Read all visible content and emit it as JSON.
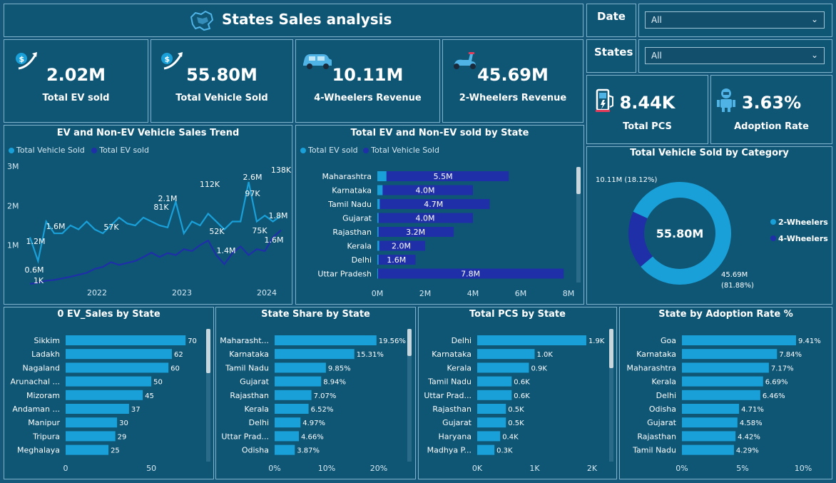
{
  "header": {
    "title": "States Sales analysis"
  },
  "filters": {
    "date": {
      "label": "Date",
      "value": "All"
    },
    "states": {
      "label": "States",
      "value": "All"
    }
  },
  "kpis": [
    {
      "value": "2.02M",
      "label": "Total EV sold",
      "icon": "dollar-growth-icon"
    },
    {
      "value": "55.80M",
      "label": "Total Vehicle Sold",
      "icon": "dollar-growth-icon"
    },
    {
      "value": "10.11M",
      "label": "4-Wheelers Revenue",
      "icon": "car-icon"
    },
    {
      "value": "45.69M",
      "label": "2-Wheelers Revenue",
      "icon": "scooter-icon"
    },
    {
      "value": "8.44K",
      "label": "Total PCS",
      "icon": "charging-station-icon"
    },
    {
      "value": "3.63%",
      "label": "Adoption Rate",
      "icon": "robot-icon"
    }
  ],
  "colors": {
    "light": "#1aa0d8",
    "dark": "#1f2fa8",
    "bar": "#1aa0d8"
  },
  "chart_data": [
    {
      "type": "line",
      "title": "EV and Non-EV Vehicle Sales Trend",
      "series": [
        {
          "name": "Total Vehicle Sold",
          "values": [
            1.2,
            0.6,
            1.6,
            1.3,
            1.3,
            1.5,
            1.4,
            1.6,
            1.4,
            1.3,
            1.5,
            1.7,
            1.55,
            1.5,
            1.7,
            1.6,
            1.5,
            1.45,
            2.1,
            1.3,
            1.6,
            1.5,
            1.8,
            1.6,
            1.4,
            1.6,
            1.6,
            2.6,
            1.6,
            1.75,
            1.6,
            1.75
          ]
        },
        {
          "name": "Total EV sold",
          "values": [
            0.02,
            0.05,
            0.1,
            0.12,
            0.16,
            0.2,
            0.25,
            0.3,
            0.4,
            0.45,
            0.57,
            0.5,
            0.55,
            0.6,
            0.7,
            0.81,
            0.7,
            0.8,
            0.75,
            0.9,
            0.85,
            1.0,
            1.12,
            0.75,
            0.52,
            0.8,
            0.97,
            0.75,
            0.9,
            0.85,
            1.2,
            1.38
          ]
        }
      ],
      "x_ticks": [
        "2022",
        "2023",
        "2024"
      ],
      "y_ticks": [
        "1M",
        "2M",
        "3M"
      ],
      "y_range": [
        0,
        3.0
      ],
      "data_labels": [
        "1.2M",
        "0.6M",
        "1K",
        "1.6M",
        "57K",
        "2.1M",
        "81K",
        "112K",
        "52K",
        "1.4M",
        "2.6M",
        "97K",
        "75K",
        "1.6M",
        "1.8M",
        "138K"
      ]
    },
    {
      "type": "bar",
      "title": "Total EV and Non-EV sold by State",
      "categories": [
        "Maharashtra",
        "Karnataka",
        "Tamil Nadu",
        "Gujarat",
        "Rajasthan",
        "Kerala",
        "Delhi",
        "Uttar Pradesh"
      ],
      "series": [
        {
          "name": "Total EV sold",
          "values": [
            0.38,
            0.22,
            0.1,
            0.05,
            0.05,
            0.08,
            0.05,
            0.03
          ]
        },
        {
          "name": "Total Vehicle Sold",
          "values": [
            5.5,
            4.0,
            4.7,
            4.0,
            3.2,
            2.0,
            1.6,
            7.8
          ]
        }
      ],
      "value_labels": [
        "5.5M",
        "4.0M",
        "4.7M",
        "4.0M",
        "3.2M",
        "2.0M",
        "1.6M",
        "7.8M"
      ],
      "x_ticks": [
        "0M",
        "2M",
        "4M",
        "6M",
        "8M"
      ],
      "xlim": [
        0,
        8
      ]
    },
    {
      "type": "pie",
      "title": "Total Vehicle Sold by Category",
      "center_label": "55.80M",
      "slices": [
        {
          "name": "2-Wheelers",
          "value": 45.69,
          "label": "45.69M",
          "pct": "(81.88%)"
        },
        {
          "name": "4-Wheelers",
          "value": 10.11,
          "label": "10.11M (18.12%)"
        }
      ]
    },
    {
      "type": "bar",
      "title": "0 EV_Sales by State",
      "categories": [
        "Sikkim",
        "Ladakh",
        "Nagaland",
        "Arunachal ...",
        "Mizoram",
        "Andaman ...",
        "Manipur",
        "Tripura",
        "Meghalaya"
      ],
      "values": [
        70,
        62,
        60,
        50,
        45,
        37,
        30,
        29,
        25
      ],
      "value_labels": [
        "70",
        "62",
        "60",
        "50",
        "45",
        "37",
        "30",
        "29",
        "25"
      ],
      "x_ticks": [
        "0",
        "50"
      ],
      "xlim": [
        0,
        72
      ]
    },
    {
      "type": "bar",
      "title": "State Share by State",
      "categories": [
        "Maharasht...",
        "Karnataka",
        "Tamil Nadu",
        "Gujarat",
        "Rajasthan",
        "Kerala",
        "Delhi",
        "Uttar Prad...",
        "Odisha"
      ],
      "values": [
        19.56,
        15.31,
        9.85,
        8.94,
        7.07,
        6.52,
        4.97,
        4.66,
        3.87
      ],
      "value_labels": [
        "19.56%",
        "15.31%",
        "9.85%",
        "8.94%",
        "7.07%",
        "6.52%",
        "4.97%",
        "4.66%",
        "3.87%"
      ],
      "x_ticks": [
        "0%",
        "10%",
        "20%"
      ],
      "xlim": [
        0,
        20
      ]
    },
    {
      "type": "bar",
      "title": "Total PCS by State",
      "categories": [
        "Delhi",
        "Karnataka",
        "Kerala",
        "Tamil Nadu",
        "Uttar Prad...",
        "Rajasthan",
        "Gujarat",
        "Haryana",
        "Madhya P..."
      ],
      "values": [
        1.9,
        1.0,
        0.9,
        0.6,
        0.6,
        0.5,
        0.5,
        0.4,
        0.3
      ],
      "value_labels": [
        "1.9K",
        "1.0K",
        "0.9K",
        "0.6K",
        "0.6K",
        "0.5K",
        "0.5K",
        "0.4K",
        "0.3K"
      ],
      "x_ticks": [
        "0K",
        "1K",
        "2K"
      ],
      "xlim": [
        0,
        2
      ]
    },
    {
      "type": "bar",
      "title": "State by Adoption Rate %",
      "categories": [
        "Goa",
        "Karnataka",
        "Maharashtra",
        "Kerala",
        "Delhi",
        "Odisha",
        "Gujarat",
        "Rajasthan",
        "Tamil Nadu"
      ],
      "values": [
        9.41,
        7.84,
        7.17,
        6.69,
        6.46,
        4.71,
        4.58,
        4.42,
        4.29
      ],
      "value_labels": [
        "9.41%",
        "7.84%",
        "7.17%",
        "6.69%",
        "6.46%",
        "4.71%",
        "4.58%",
        "4.42%",
        "4.29%"
      ],
      "x_ticks": [
        "0%",
        "5%",
        "10%"
      ],
      "xlim": [
        0,
        10
      ]
    }
  ]
}
